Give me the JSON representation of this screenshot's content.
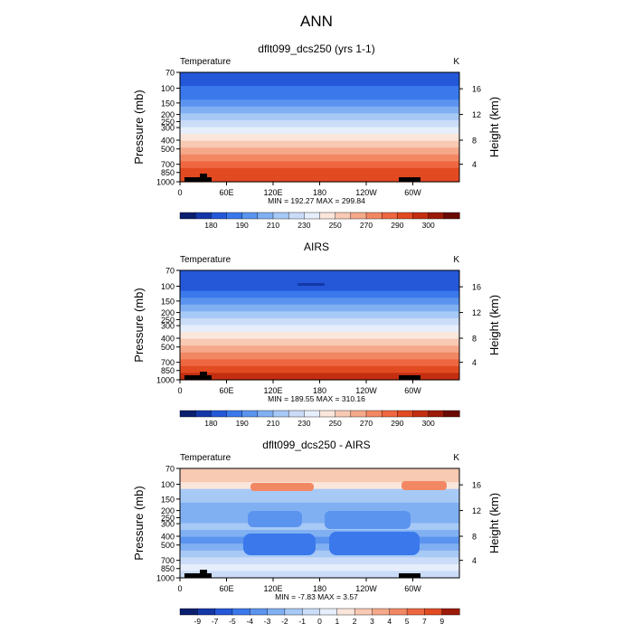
{
  "page": {
    "title": "ANN"
  },
  "chart_data": [
    {
      "type": "heatmap",
      "title": "dflt099_dcs250 (yrs 1-1)",
      "left_label": "Temperature",
      "units_label": "K",
      "ylabel": "Pressure (mb)",
      "ylabel_right": "Height (km)",
      "xticks": [
        "0",
        "60E",
        "120E",
        "180",
        "120W",
        "60W"
      ],
      "yticks_pressure": [
        "70",
        "100",
        "150",
        "200",
        "250",
        "300",
        "400",
        "500",
        "700",
        "850",
        "1000"
      ],
      "yticks_height": [
        "16",
        "12",
        "8",
        "4"
      ],
      "stats": "MIN = 192.27   MAX = 299.84",
      "colorbar_labels": [
        "180",
        "190",
        "210",
        "230",
        "250",
        "270",
        "290",
        "300"
      ],
      "colorbar_colors": [
        "#0a1f6e",
        "#1437a8",
        "#2458d8",
        "#3a78ec",
        "#5b94ef",
        "#80b0f2",
        "#a7c9f6",
        "#cadcf8",
        "#e6eefb",
        "#fbe6dc",
        "#f8c9b3",
        "#f5a98a",
        "#f28863",
        "#ee6741",
        "#e24a22",
        "#c42e10",
        "#9c1a08",
        "#6a0a04"
      ],
      "band_colors": [
        "#2458d8",
        "#2458d8",
        "#3a78ec",
        "#3a78ec",
        "#5b94ef",
        "#80b0f2",
        "#a7c9f6",
        "#cadcf8",
        "#e6eefb",
        "#fbe6dc",
        "#f8c9b3",
        "#f5a98a",
        "#f28863",
        "#ee6741",
        "#e24a22",
        "#e24a22"
      ]
    },
    {
      "type": "heatmap",
      "title": "AIRS",
      "left_label": "Temperature",
      "units_label": "K",
      "ylabel": "Pressure (mb)",
      "ylabel_right": "Height (km)",
      "xticks": [
        "0",
        "60E",
        "120E",
        "180",
        "120W",
        "60W"
      ],
      "yticks_pressure": [
        "70",
        "100",
        "150",
        "200",
        "250",
        "300",
        "400",
        "500",
        "700",
        "850",
        "1000"
      ],
      "yticks_height": [
        "16",
        "12",
        "8",
        "4"
      ],
      "stats": "MIN = 189.55   MAX = 310.16",
      "colorbar_labels": [
        "180",
        "190",
        "210",
        "230",
        "250",
        "270",
        "290",
        "300"
      ],
      "colorbar_colors": [
        "#0a1f6e",
        "#1437a8",
        "#2458d8",
        "#3a78ec",
        "#5b94ef",
        "#80b0f2",
        "#a7c9f6",
        "#cadcf8",
        "#e6eefb",
        "#fbe6dc",
        "#f8c9b3",
        "#f5a98a",
        "#f28863",
        "#ee6741",
        "#e24a22",
        "#c42e10",
        "#9c1a08",
        "#6a0a04"
      ],
      "band_colors": [
        "#2458d8",
        "#2458d8",
        "#2458d8",
        "#3a78ec",
        "#5b94ef",
        "#80b0f2",
        "#a7c9f6",
        "#cadcf8",
        "#e6eefb",
        "#fbe6dc",
        "#f8c9b3",
        "#f5a98a",
        "#f28863",
        "#ee6741",
        "#e24a22",
        "#c42e10"
      ]
    },
    {
      "type": "heatmap",
      "title": "dflt099_dcs250 - AIRS",
      "left_label": "Temperature",
      "units_label": "K",
      "ylabel": "Pressure (mb)",
      "ylabel_right": "Height (km)",
      "xticks": [
        "0",
        "60E",
        "120E",
        "180",
        "120W",
        "60W"
      ],
      "yticks_pressure": [
        "70",
        "100",
        "150",
        "200",
        "250",
        "300",
        "400",
        "500",
        "700",
        "850",
        "1000"
      ],
      "yticks_height": [
        "16",
        "12",
        "8",
        "4"
      ],
      "stats": "MIN =  -7.83   MAX =    3.57",
      "colorbar_labels": [
        "-9",
        "-7",
        "-5",
        "-4",
        "-3",
        "-2",
        "-1",
        "0",
        "1",
        "2",
        "3",
        "4",
        "5",
        "7",
        "9"
      ],
      "colorbar_colors": [
        "#0a1f6e",
        "#1437a8",
        "#2458d8",
        "#3a78ec",
        "#5b94ef",
        "#80b0f2",
        "#a7c9f6",
        "#cadcf8",
        "#e6eefb",
        "#fbe6dc",
        "#f8c9b3",
        "#f5a98a",
        "#f28863",
        "#ee6741",
        "#e24a22",
        "#9c1a08"
      ],
      "band_colors": [
        "#f8c9b3",
        "#f8c9b3",
        "#fbe6dc",
        "#a7c9f6",
        "#a7c9f6",
        "#80b0f2",
        "#80b0f2",
        "#80b0f2",
        "#a7c9f6",
        "#80b0f2",
        "#5b94ef",
        "#80b0f2",
        "#a7c9f6",
        "#cadcf8",
        "#e6eefb",
        "#cadcf8"
      ]
    }
  ]
}
